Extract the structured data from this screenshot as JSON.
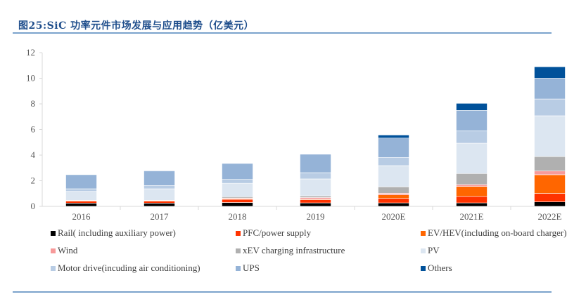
{
  "title": "图25:SiC 功率元件市场发展与应用趋势（亿美元）",
  "chart_data": {
    "type": "bar",
    "stacked": true,
    "title": "图25:SiC 功率元件市场发展与应用趋势（亿美元）",
    "categories": [
      "2016",
      "2017",
      "2018",
      "2019",
      "2020E",
      "2021E",
      "2022E"
    ],
    "ylim": [
      0,
      12
    ],
    "yticks": [
      0,
      2,
      4,
      6,
      8,
      10,
      12
    ],
    "grid": false,
    "legend_position": "bottom",
    "series": [
      {
        "name": "Rail( including auxiliary power)",
        "color": "#000000",
        "values": [
          0.25,
          0.25,
          0.3,
          0.27,
          0.27,
          0.27,
          0.35
        ]
      },
      {
        "name": "PFC/power supply",
        "color": "#ff3300",
        "values": [
          0.15,
          0.15,
          0.25,
          0.24,
          0.35,
          0.51,
          0.66
        ]
      },
      {
        "name": "EV/HEV(including on-board charger)",
        "color": "#ff6600",
        "values": [
          0.05,
          0.05,
          0.05,
          0.05,
          0.28,
          0.77,
          1.46
        ]
      },
      {
        "name": "Wind",
        "color": "#f79a9a",
        "values": [
          0.02,
          0.02,
          0.05,
          0.13,
          0.12,
          0.15,
          0.29
        ]
      },
      {
        "name": "xEV charging infrastructure",
        "color": "#b0b0b0",
        "values": [
          0,
          0,
          0.1,
          0.13,
          0.51,
          0.86,
          1.13
        ]
      },
      {
        "name": "PV",
        "color": "#dce6f1",
        "values": [
          0.7,
          0.9,
          1.05,
          1.32,
          1.65,
          2.37,
          3.18
        ]
      },
      {
        "name": "Motor drive(incuding air conditioning)",
        "color": "#b8cce4",
        "values": [
          0.2,
          0.25,
          0.3,
          0.49,
          0.64,
          0.97,
          1.31
        ]
      },
      {
        "name": "UPS",
        "color": "#95b3d7",
        "values": [
          1.1,
          1.15,
          1.25,
          1.44,
          1.51,
          1.59,
          1.62
        ]
      },
      {
        "name": "Others",
        "color": "#00519a",
        "values": [
          0,
          0,
          0,
          0,
          0.24,
          0.55,
          0.9
        ]
      }
    ]
  }
}
